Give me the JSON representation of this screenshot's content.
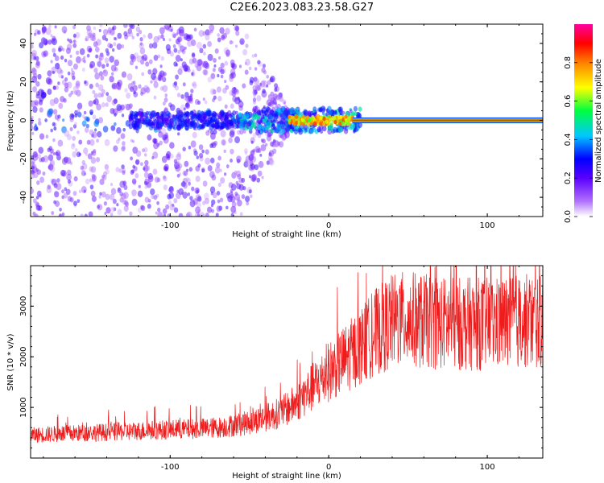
{
  "figure": {
    "title": "C2E6.2023.083.23.58.G27"
  },
  "colors": {
    "background": "#ffffff",
    "axes": "#000000",
    "snr_line": "#ee1c1c",
    "colormap": [
      "#ffffff",
      "#5a00ff",
      "#0000ff",
      "#00c8ff",
      "#00ff40",
      "#ffff00",
      "#ff8000",
      "#ff0000",
      "#ff00a0"
    ]
  },
  "chart_data": [
    {
      "type": "heatmap",
      "title": "",
      "xlabel": "Height of straight line (km)",
      "ylabel": "Frequency (Hz)",
      "xlim": [
        -188,
        135
      ],
      "ylim": [
        -50,
        50
      ],
      "xticks": [
        -100,
        0,
        100
      ],
      "xtick_labels": [
        "-100",
        "0",
        "100"
      ],
      "yticks": [
        -40,
        -20,
        0,
        20,
        40
      ],
      "ytick_labels": [
        "-40",
        "-20",
        "0",
        "20",
        "40"
      ],
      "colorbar": {
        "label": "Normalized spectral amplitude",
        "range": [
          0,
          1
        ],
        "ticks": [
          0.0,
          0.2,
          0.4,
          0.6,
          0.8
        ],
        "tick_labels": [
          "0.0",
          "0.2",
          "0.4",
          "0.6",
          "0.8"
        ]
      },
      "description_of_content": [
        {
          "x_range": [
            -188,
            -50
          ],
          "freq_spread_hz": 50,
          "amplitude": [
            0.05,
            0.25
          ]
        },
        {
          "x_range": [
            -50,
            -20
          ],
          "freq_spread_hz": 8,
          "amplitude": [
            0.15,
            0.4
          ]
        },
        {
          "x_range": [
            -20,
            15
          ],
          "freq_spread_hz": 3,
          "amplitude": [
            0.5,
            0.85
          ]
        },
        {
          "x_range": [
            15,
            135
          ],
          "freq_spread_hz": 1.5,
          "amplitude": [
            0.8,
            0.9
          ]
        }
      ]
    },
    {
      "type": "line",
      "title": "",
      "xlabel": "Height of straight line (km)",
      "ylabel": "SNR (10 * v/v)",
      "xlim": [
        -188,
        135
      ],
      "ylim": [
        0,
        3800
      ],
      "xticks": [
        -100,
        0,
        100
      ],
      "xtick_labels": [
        "-100",
        "0",
        "100"
      ],
      "yticks": [
        1000,
        2000,
        3000
      ],
      "ytick_labels": [
        "1000",
        "2000",
        "3000"
      ],
      "series": [
        {
          "x": [
            -188,
            -170,
            -150,
            -130,
            -110,
            -90,
            -70,
            -50,
            -40,
            -30,
            -20,
            -10,
            0,
            10,
            20,
            30,
            40,
            50,
            60,
            80,
            100,
            120,
            135
          ],
          "values": [
            450,
            480,
            500,
            520,
            550,
            570,
            600,
            700,
            800,
            900,
            1100,
            1400,
            1700,
            1950,
            2200,
            2500,
            2700,
            2750,
            2700,
            2650,
            2650,
            2700,
            2700
          ]
        }
      ]
    }
  ]
}
